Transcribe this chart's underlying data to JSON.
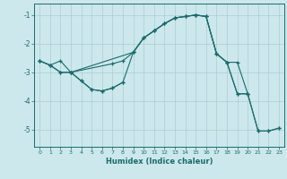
{
  "xlabel": "Humidex (Indice chaleur)",
  "background_color": "#cce8ec",
  "grid_color": "#aacdd4",
  "line_color": "#1a6b6b",
  "xlim": [
    -0.5,
    23.5
  ],
  "ylim": [
    -5.6,
    -0.6
  ],
  "yticks": [
    -5,
    -4,
    -3,
    -2,
    -1
  ],
  "xticks": [
    0,
    1,
    2,
    3,
    4,
    5,
    6,
    7,
    8,
    9,
    10,
    11,
    12,
    13,
    14,
    15,
    16,
    17,
    18,
    19,
    20,
    21,
    22,
    23
  ],
  "curve1_x": [
    0,
    1,
    2,
    3,
    9,
    10,
    11,
    12,
    13,
    14,
    15,
    16,
    17,
    18,
    19,
    20
  ],
  "curve1_y": [
    -2.6,
    -2.75,
    -2.6,
    -3.0,
    -2.3,
    -1.8,
    -1.55,
    -1.3,
    -1.1,
    -1.05,
    -1.0,
    -1.05,
    -2.35,
    -2.65,
    -2.65,
    -3.75
  ],
  "curve2_x": [
    3,
    4,
    5,
    6,
    7,
    8
  ],
  "curve2_y": [
    -3.0,
    -3.3,
    -3.6,
    -3.65,
    -3.55,
    -3.35
  ],
  "curve3_x": [
    0,
    1,
    2,
    3,
    7,
    8,
    9,
    10,
    11,
    12,
    13,
    14,
    15,
    16,
    17,
    18,
    19,
    20,
    21,
    22,
    23
  ],
  "curve3_y": [
    -2.6,
    -2.75,
    -3.0,
    -3.0,
    -2.7,
    -2.6,
    -2.3,
    -1.8,
    -1.55,
    -1.3,
    -1.1,
    -1.05,
    -1.0,
    -1.05,
    -2.35,
    -2.65,
    -3.75,
    -3.75,
    -5.05,
    -5.05,
    -4.95
  ],
  "curve4_x": [
    0,
    1,
    2,
    3,
    4,
    5,
    6,
    7,
    8,
    9,
    10,
    11,
    12,
    13,
    14,
    15,
    16,
    17,
    18,
    19,
    20,
    21,
    22,
    23
  ],
  "curve4_y": [
    -2.6,
    -2.75,
    -3.0,
    -3.0,
    -3.3,
    -3.6,
    -3.65,
    -3.55,
    -3.35,
    -2.3,
    -1.8,
    -1.55,
    -1.3,
    -1.1,
    -1.05,
    -1.0,
    -1.05,
    -2.35,
    -2.65,
    -3.75,
    -3.75,
    -5.05,
    -5.05,
    -4.95
  ]
}
